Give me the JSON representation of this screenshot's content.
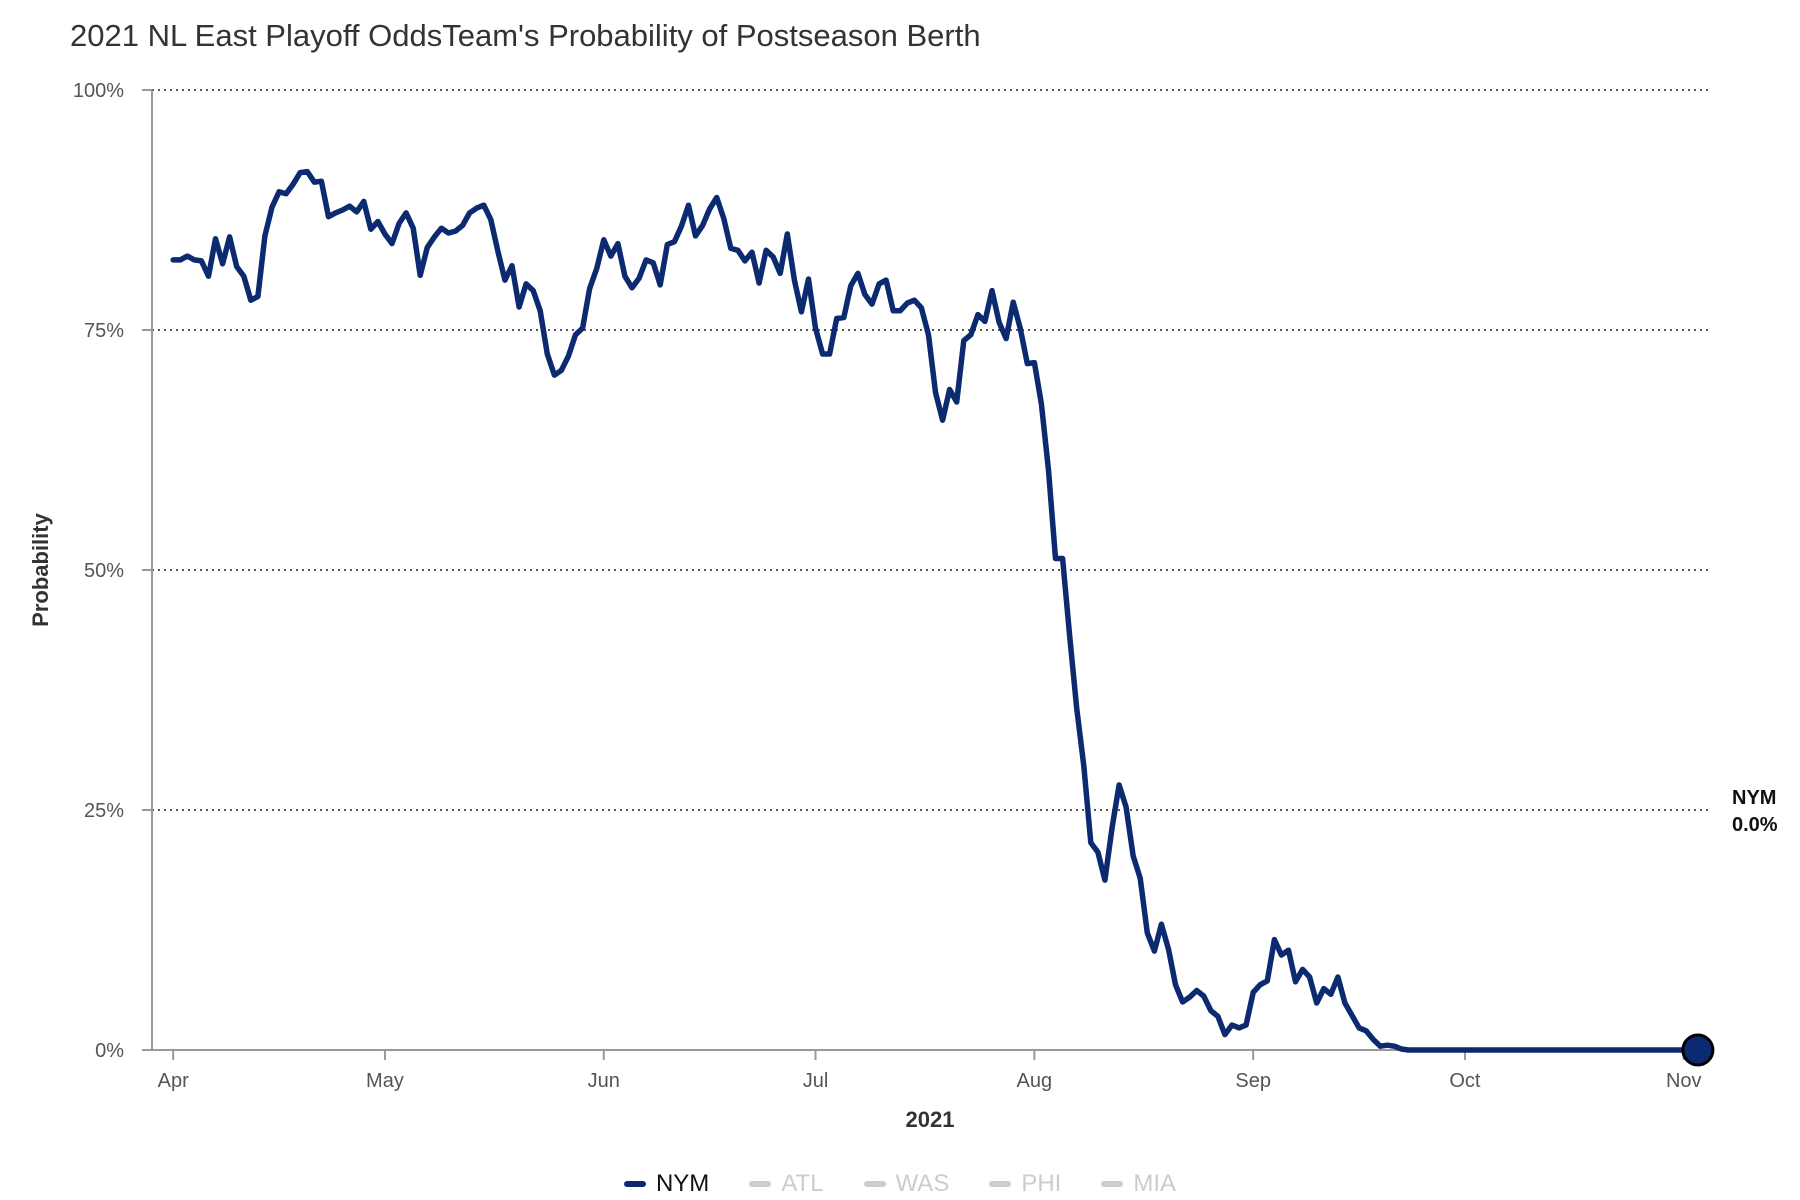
{
  "title": "2021 NL East Playoff OddsTeam's Probability of Postseason Berth",
  "colors": {
    "primary": "#0b2a6f",
    "inactive": "#cccccc",
    "axis": "#999999",
    "grid": "#222222",
    "text": "#555555"
  },
  "end_label": {
    "team": "NYM",
    "value": "0.0%"
  },
  "legend": [
    {
      "label": "NYM",
      "active": true
    },
    {
      "label": "ATL",
      "active": false
    },
    {
      "label": "WAS",
      "active": false
    },
    {
      "label": "PHI",
      "active": false
    },
    {
      "label": "MIA",
      "active": false
    }
  ],
  "chart_data": {
    "type": "line",
    "title": "2021 NL East Playoff OddsTeam's Probability of Postseason Berth",
    "xlabel": "2021",
    "ylabel": "Probability",
    "ylim": [
      0,
      100
    ],
    "y_ticks": [
      {
        "value": 0,
        "label": "0%"
      },
      {
        "value": 25,
        "label": "25%"
      },
      {
        "value": 50,
        "label": "50%"
      },
      {
        "value": 75,
        "label": "75%"
      },
      {
        "value": 100,
        "label": "100%"
      }
    ],
    "x_ticks": [
      {
        "date": "2021-04-01",
        "label": "Apr"
      },
      {
        "date": "2021-05-01",
        "label": "May"
      },
      {
        "date": "2021-06-01",
        "label": "Jun"
      },
      {
        "date": "2021-07-01",
        "label": "Jul"
      },
      {
        "date": "2021-08-01",
        "label": "Aug"
      },
      {
        "date": "2021-09-01",
        "label": "Sep"
      },
      {
        "date": "2021-10-01",
        "label": "Oct"
      },
      {
        "date": "2021-11-01",
        "label": "Nov"
      }
    ],
    "xlim": [
      "2021-03-29",
      "2021-11-05"
    ],
    "grid": "horizontal dotted",
    "legend_position": "bottom",
    "series": [
      {
        "name": "NYM",
        "color": "#0b2a6f",
        "points": [
          [
            "2021-04-01",
            82.3
          ],
          [
            "2021-04-02",
            82.3
          ],
          [
            "2021-04-03",
            82.7
          ],
          [
            "2021-04-04",
            82.3
          ],
          [
            "2021-04-05",
            82.2
          ],
          [
            "2021-04-06",
            80.6
          ],
          [
            "2021-04-07",
            84.5
          ],
          [
            "2021-04-08",
            81.9
          ],
          [
            "2021-04-09",
            84.7
          ],
          [
            "2021-04-10",
            81.6
          ],
          [
            "2021-04-11",
            80.6
          ],
          [
            "2021-04-12",
            78.1
          ],
          [
            "2021-04-13",
            78.5
          ],
          [
            "2021-04-14",
            84.8
          ],
          [
            "2021-04-15",
            87.8
          ],
          [
            "2021-04-16",
            89.4
          ],
          [
            "2021-04-17",
            89.2
          ],
          [
            "2021-04-18",
            90.2
          ],
          [
            "2021-04-19",
            91.4
          ],
          [
            "2021-04-20",
            91.5
          ],
          [
            "2021-04-21",
            90.4
          ],
          [
            "2021-04-22",
            90.5
          ],
          [
            "2021-04-23",
            86.8
          ],
          [
            "2021-04-24",
            87.2
          ],
          [
            "2021-04-25",
            87.5
          ],
          [
            "2021-04-26",
            87.9
          ],
          [
            "2021-04-27",
            87.3
          ],
          [
            "2021-04-28",
            88.4
          ],
          [
            "2021-04-29",
            85.5
          ],
          [
            "2021-04-30",
            86.3
          ],
          [
            "2021-05-01",
            85.0
          ],
          [
            "2021-05-02",
            84.0
          ],
          [
            "2021-05-03",
            86.1
          ],
          [
            "2021-05-04",
            87.2
          ],
          [
            "2021-05-05",
            85.6
          ],
          [
            "2021-05-06",
            80.7
          ],
          [
            "2021-05-07",
            83.6
          ],
          [
            "2021-05-08",
            84.7
          ],
          [
            "2021-05-09",
            85.6
          ],
          [
            "2021-05-10",
            85.1
          ],
          [
            "2021-05-11",
            85.3
          ],
          [
            "2021-05-12",
            85.9
          ],
          [
            "2021-05-13",
            87.2
          ],
          [
            "2021-05-14",
            87.7
          ],
          [
            "2021-05-15",
            88.0
          ],
          [
            "2021-05-16",
            86.5
          ],
          [
            "2021-05-17",
            83.2
          ],
          [
            "2021-05-18",
            80.2
          ],
          [
            "2021-05-19",
            81.7
          ],
          [
            "2021-05-20",
            77.4
          ],
          [
            "2021-05-21",
            79.8
          ],
          [
            "2021-05-22",
            79.1
          ],
          [
            "2021-05-23",
            77.0
          ],
          [
            "2021-05-24",
            72.5
          ],
          [
            "2021-05-25",
            70.3
          ],
          [
            "2021-05-26",
            70.8
          ],
          [
            "2021-05-27",
            72.3
          ],
          [
            "2021-05-28",
            74.5
          ],
          [
            "2021-05-29",
            75.2
          ],
          [
            "2021-05-30",
            79.3
          ],
          [
            "2021-05-31",
            81.4
          ],
          [
            "2021-06-01",
            84.4
          ],
          [
            "2021-06-02",
            82.7
          ],
          [
            "2021-06-03",
            84.0
          ],
          [
            "2021-06-04",
            80.6
          ],
          [
            "2021-06-05",
            79.4
          ],
          [
            "2021-06-06",
            80.4
          ],
          [
            "2021-06-07",
            82.3
          ],
          [
            "2021-06-08",
            82.0
          ],
          [
            "2021-06-09",
            79.7
          ],
          [
            "2021-06-10",
            83.9
          ],
          [
            "2021-06-11",
            84.2
          ],
          [
            "2021-06-12",
            85.8
          ],
          [
            "2021-06-13",
            88.0
          ],
          [
            "2021-06-14",
            84.8
          ],
          [
            "2021-06-15",
            85.9
          ],
          [
            "2021-06-16",
            87.6
          ],
          [
            "2021-06-17",
            88.8
          ],
          [
            "2021-06-18",
            86.6
          ],
          [
            "2021-06-19",
            83.5
          ],
          [
            "2021-06-20",
            83.3
          ],
          [
            "2021-06-21",
            82.2
          ],
          [
            "2021-06-22",
            83.1
          ],
          [
            "2021-06-23",
            79.9
          ],
          [
            "2021-06-24",
            83.3
          ],
          [
            "2021-06-25",
            82.6
          ],
          [
            "2021-06-26",
            80.9
          ],
          [
            "2021-06-27",
            85.0
          ],
          [
            "2021-06-28",
            80.2
          ],
          [
            "2021-06-29",
            76.9
          ],
          [
            "2021-06-30",
            80.3
          ],
          [
            "2021-07-01",
            75.2
          ],
          [
            "2021-07-02",
            72.5
          ],
          [
            "2021-07-03",
            72.5
          ],
          [
            "2021-07-04",
            76.2
          ],
          [
            "2021-07-05",
            76.3
          ],
          [
            "2021-07-06",
            79.6
          ],
          [
            "2021-07-07",
            80.9
          ],
          [
            "2021-07-08",
            78.7
          ],
          [
            "2021-07-09",
            77.7
          ],
          [
            "2021-07-10",
            79.8
          ],
          [
            "2021-07-11",
            80.2
          ],
          [
            "2021-07-12",
            77.0
          ],
          [
            "2021-07-13",
            77.0
          ],
          [
            "2021-07-14",
            77.8
          ],
          [
            "2021-07-15",
            78.1
          ],
          [
            "2021-07-16",
            77.3
          ],
          [
            "2021-07-17",
            74.5
          ],
          [
            "2021-07-18",
            68.5
          ],
          [
            "2021-07-19",
            65.6
          ],
          [
            "2021-07-20",
            68.8
          ],
          [
            "2021-07-21",
            67.5
          ],
          [
            "2021-07-22",
            73.9
          ],
          [
            "2021-07-23",
            74.5
          ],
          [
            "2021-07-24",
            76.6
          ],
          [
            "2021-07-25",
            75.9
          ],
          [
            "2021-07-26",
            79.1
          ],
          [
            "2021-07-27",
            75.8
          ],
          [
            "2021-07-28",
            74.1
          ],
          [
            "2021-07-29",
            77.9
          ],
          [
            "2021-07-30",
            75.2
          ],
          [
            "2021-07-31",
            71.5
          ],
          [
            "2021-08-01",
            71.6
          ],
          [
            "2021-08-02",
            67.3
          ],
          [
            "2021-08-03",
            60.4
          ],
          [
            "2021-08-04",
            51.2
          ],
          [
            "2021-08-05",
            51.2
          ],
          [
            "2021-08-06",
            43.2
          ],
          [
            "2021-08-07",
            35.6
          ],
          [
            "2021-08-08",
            29.6
          ],
          [
            "2021-08-09",
            21.6
          ],
          [
            "2021-08-10",
            20.6
          ],
          [
            "2021-08-11",
            17.7
          ],
          [
            "2021-08-12",
            23.1
          ],
          [
            "2021-08-13",
            27.6
          ],
          [
            "2021-08-14",
            25.3
          ],
          [
            "2021-08-15",
            20.2
          ],
          [
            "2021-08-16",
            17.9
          ],
          [
            "2021-08-17",
            12.2
          ],
          [
            "2021-08-18",
            10.3
          ],
          [
            "2021-08-19",
            13.1
          ],
          [
            "2021-08-20",
            10.5
          ],
          [
            "2021-08-21",
            6.8
          ],
          [
            "2021-08-22",
            5.0
          ],
          [
            "2021-08-23",
            5.5
          ],
          [
            "2021-08-24",
            6.2
          ],
          [
            "2021-08-25",
            5.6
          ],
          [
            "2021-08-26",
            4.1
          ],
          [
            "2021-08-27",
            3.5
          ],
          [
            "2021-08-28",
            1.6
          ],
          [
            "2021-08-29",
            2.6
          ],
          [
            "2021-08-30",
            2.3
          ],
          [
            "2021-08-31",
            2.6
          ],
          [
            "2021-09-01",
            6.0
          ],
          [
            "2021-09-02",
            6.8
          ],
          [
            "2021-09-03",
            7.2
          ],
          [
            "2021-09-04",
            11.5
          ],
          [
            "2021-09-05",
            9.9
          ],
          [
            "2021-09-06",
            10.4
          ],
          [
            "2021-09-07",
            7.1
          ],
          [
            "2021-09-08",
            8.4
          ],
          [
            "2021-09-09",
            7.6
          ],
          [
            "2021-09-10",
            4.9
          ],
          [
            "2021-09-11",
            6.4
          ],
          [
            "2021-09-12",
            5.8
          ],
          [
            "2021-09-13",
            7.6
          ],
          [
            "2021-09-14",
            4.9
          ],
          [
            "2021-09-15",
            3.6
          ],
          [
            "2021-09-16",
            2.3
          ],
          [
            "2021-09-17",
            2.0
          ],
          [
            "2021-09-18",
            1.1
          ],
          [
            "2021-09-19",
            0.4
          ],
          [
            "2021-09-20",
            0.5
          ],
          [
            "2021-09-21",
            0.4
          ],
          [
            "2021-09-22",
            0.1
          ],
          [
            "2021-09-23",
            0.0
          ],
          [
            "2021-10-01",
            0.0
          ],
          [
            "2021-11-03",
            0.0
          ]
        ]
      },
      {
        "name": "ATL",
        "color": "#cccccc",
        "points": []
      },
      {
        "name": "WAS",
        "color": "#cccccc",
        "points": []
      },
      {
        "name": "PHI",
        "color": "#cccccc",
        "points": []
      },
      {
        "name": "MIA",
        "color": "#cccccc",
        "points": []
      }
    ]
  }
}
